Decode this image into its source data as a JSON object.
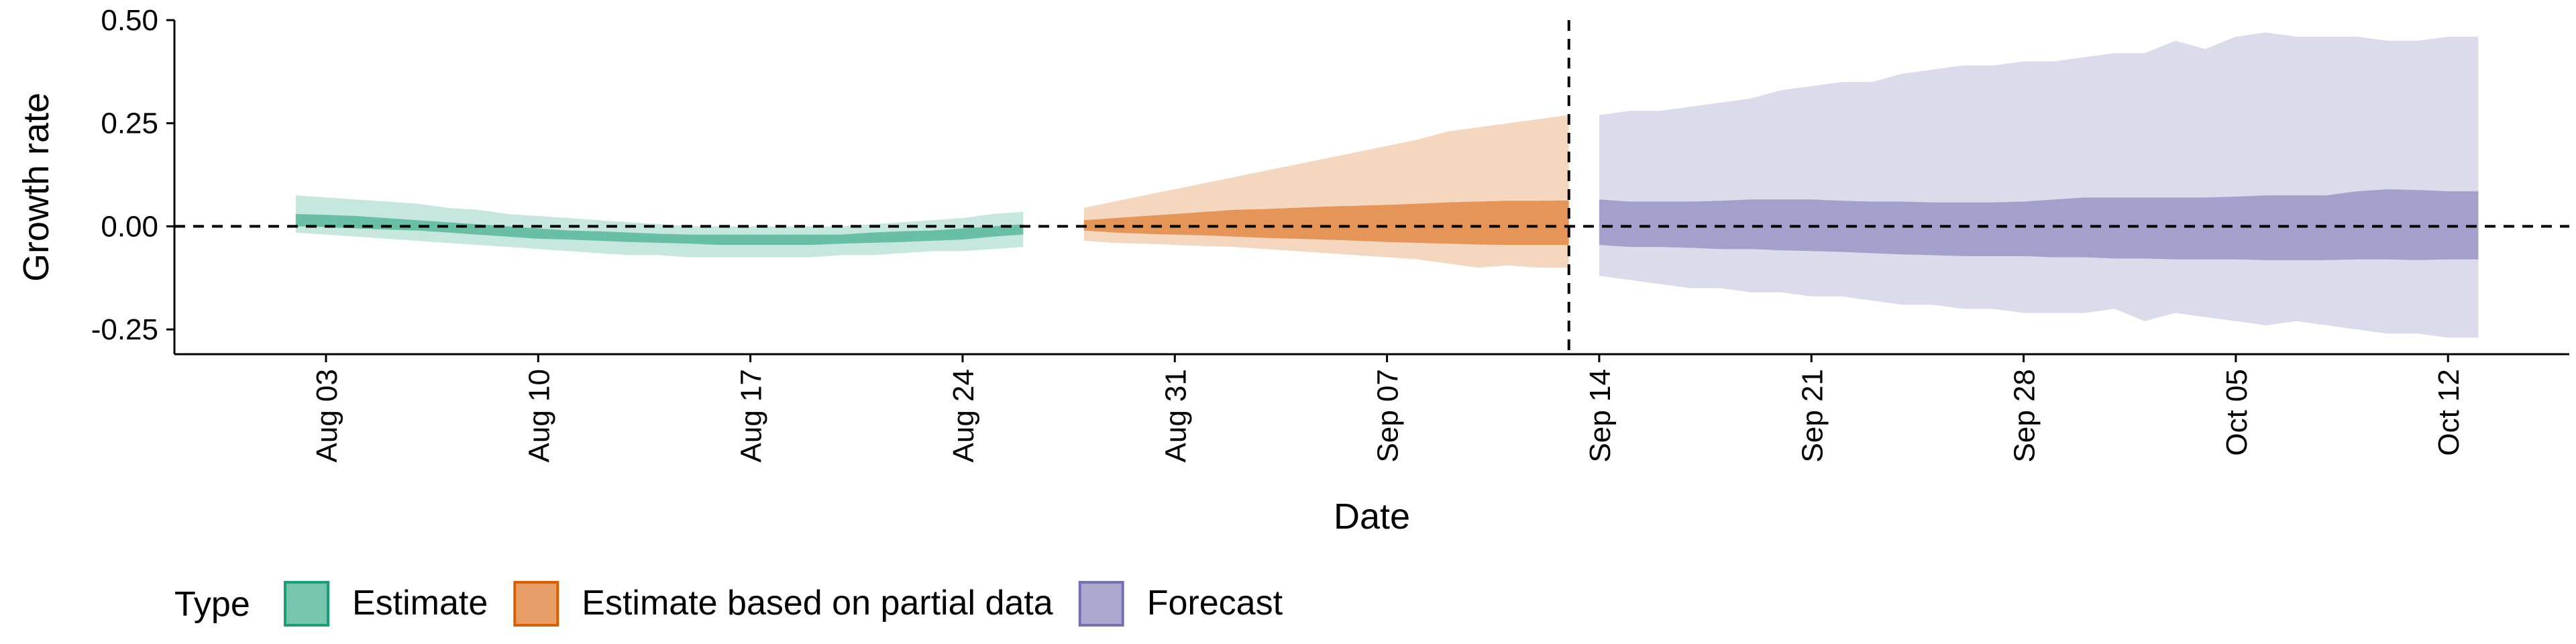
{
  "chart_data": {
    "type": "area",
    "xlabel": "Date",
    "ylabel": "Growth rate",
    "x_type": "date",
    "xlim": [
      "2020-07-29",
      "2020-10-16"
    ],
    "ylim": [
      -0.31,
      0.5
    ],
    "y_ticks": [
      0.5,
      0.25,
      0.0,
      -0.25
    ],
    "y_tick_labels": [
      "0.50",
      "0.25",
      "0.00",
      "-0.25"
    ],
    "x_ticks": [
      "2020-08-03",
      "2020-08-10",
      "2020-08-17",
      "2020-08-24",
      "2020-08-31",
      "2020-09-07",
      "2020-09-14",
      "2020-09-21",
      "2020-09-28",
      "2020-10-05",
      "2020-10-12"
    ],
    "x_tick_labels": [
      "Aug 03",
      "Aug 10",
      "Aug 17",
      "Aug 24",
      "Aug 31",
      "Sep 07",
      "Sep 14",
      "Sep 21",
      "Sep 28",
      "Oct 05",
      "Oct 12"
    ],
    "hline": 0.0,
    "vline": "2020-09-13",
    "legend": {
      "title": "Type",
      "position": "bottom"
    },
    "series": [
      {
        "name": "Estimate",
        "color": "#1b9e77",
        "x": [
          "2020-08-02",
          "2020-08-03",
          "2020-08-04",
          "2020-08-05",
          "2020-08-06",
          "2020-08-07",
          "2020-08-08",
          "2020-08-09",
          "2020-08-10",
          "2020-08-11",
          "2020-08-12",
          "2020-08-13",
          "2020-08-14",
          "2020-08-15",
          "2020-08-16",
          "2020-08-17",
          "2020-08-18",
          "2020-08-19",
          "2020-08-20",
          "2020-08-21",
          "2020-08-22",
          "2020-08-23",
          "2020-08-24",
          "2020-08-25",
          "2020-08-26"
        ],
        "upper90": [
          0.075,
          0.07,
          0.065,
          0.06,
          0.055,
          0.045,
          0.04,
          0.03,
          0.025,
          0.02,
          0.015,
          0.01,
          0.005,
          0.0,
          0.0,
          0.0,
          0.0,
          0.0,
          0.0,
          0.005,
          0.01,
          0.015,
          0.02,
          0.03,
          0.035
        ],
        "upper50": [
          0.03,
          0.028,
          0.025,
          0.02,
          0.015,
          0.01,
          0.005,
          0.0,
          -0.005,
          -0.01,
          -0.012,
          -0.015,
          -0.018,
          -0.02,
          -0.02,
          -0.02,
          -0.02,
          -0.02,
          -0.02,
          -0.015,
          -0.012,
          -0.01,
          -0.005,
          0.0,
          0.005
        ],
        "lower50": [
          0.0,
          -0.002,
          -0.005,
          -0.008,
          -0.01,
          -0.015,
          -0.02,
          -0.025,
          -0.03,
          -0.032,
          -0.035,
          -0.038,
          -0.04,
          -0.042,
          -0.045,
          -0.045,
          -0.045,
          -0.045,
          -0.042,
          -0.04,
          -0.038,
          -0.035,
          -0.032,
          -0.025,
          -0.02
        ],
        "lower90": [
          -0.015,
          -0.02,
          -0.025,
          -0.03,
          -0.035,
          -0.04,
          -0.045,
          -0.05,
          -0.055,
          -0.06,
          -0.065,
          -0.07,
          -0.07,
          -0.075,
          -0.075,
          -0.075,
          -0.075,
          -0.075,
          -0.07,
          -0.07,
          -0.065,
          -0.06,
          -0.06,
          -0.055,
          -0.05
        ]
      },
      {
        "name": "Estimate based on partial data",
        "color": "#d95f02",
        "x": [
          "2020-08-28",
          "2020-08-29",
          "2020-08-30",
          "2020-08-31",
          "2020-09-01",
          "2020-09-02",
          "2020-09-03",
          "2020-09-04",
          "2020-09-05",
          "2020-09-06",
          "2020-09-07",
          "2020-09-08",
          "2020-09-09",
          "2020-09-10",
          "2020-09-11",
          "2020-09-12",
          "2020-09-13"
        ],
        "upper90": [
          0.045,
          0.06,
          0.075,
          0.09,
          0.105,
          0.12,
          0.135,
          0.15,
          0.165,
          0.18,
          0.195,
          0.21,
          0.23,
          0.24,
          0.25,
          0.26,
          0.27
        ],
        "upper50": [
          0.015,
          0.02,
          0.025,
          0.03,
          0.035,
          0.04,
          0.042,
          0.045,
          0.048,
          0.05,
          0.052,
          0.055,
          0.058,
          0.06,
          0.062,
          0.062,
          0.063
        ],
        "lower50": [
          -0.01,
          -0.015,
          -0.018,
          -0.02,
          -0.022,
          -0.025,
          -0.028,
          -0.03,
          -0.032,
          -0.035,
          -0.038,
          -0.04,
          -0.042,
          -0.044,
          -0.045,
          -0.045,
          -0.045
        ],
        "lower90": [
          -0.035,
          -0.04,
          -0.042,
          -0.045,
          -0.048,
          -0.05,
          -0.055,
          -0.06,
          -0.065,
          -0.07,
          -0.075,
          -0.08,
          -0.09,
          -0.1,
          -0.095,
          -0.1,
          -0.1
        ]
      },
      {
        "name": "Forecast",
        "color": "#7570b3",
        "x": [
          "2020-09-14",
          "2020-09-15",
          "2020-09-16",
          "2020-09-17",
          "2020-09-18",
          "2020-09-19",
          "2020-09-20",
          "2020-09-21",
          "2020-09-22",
          "2020-09-23",
          "2020-09-24",
          "2020-09-25",
          "2020-09-26",
          "2020-09-27",
          "2020-09-28",
          "2020-09-29",
          "2020-09-30",
          "2020-10-01",
          "2020-10-02",
          "2020-10-03",
          "2020-10-04",
          "2020-10-05",
          "2020-10-06",
          "2020-10-07",
          "2020-10-08",
          "2020-10-09",
          "2020-10-10",
          "2020-10-11",
          "2020-10-12",
          "2020-10-13"
        ],
        "upper90": [
          0.27,
          0.28,
          0.28,
          0.29,
          0.3,
          0.31,
          0.33,
          0.34,
          0.35,
          0.35,
          0.37,
          0.38,
          0.39,
          0.39,
          0.4,
          0.4,
          0.41,
          0.42,
          0.42,
          0.45,
          0.43,
          0.46,
          0.47,
          0.46,
          0.46,
          0.46,
          0.45,
          0.45,
          0.46,
          0.46
        ],
        "upper50": [
          0.065,
          0.06,
          0.06,
          0.06,
          0.062,
          0.065,
          0.065,
          0.065,
          0.062,
          0.06,
          0.06,
          0.058,
          0.058,
          0.058,
          0.06,
          0.065,
          0.07,
          0.07,
          0.07,
          0.07,
          0.07,
          0.072,
          0.075,
          0.075,
          0.075,
          0.085,
          0.09,
          0.088,
          0.085,
          0.085
        ],
        "lower50": [
          -0.045,
          -0.05,
          -0.05,
          -0.052,
          -0.055,
          -0.055,
          -0.058,
          -0.06,
          -0.062,
          -0.065,
          -0.068,
          -0.07,
          -0.072,
          -0.072,
          -0.072,
          -0.075,
          -0.075,
          -0.078,
          -0.078,
          -0.08,
          -0.08,
          -0.08,
          -0.082,
          -0.082,
          -0.082,
          -0.08,
          -0.08,
          -0.082,
          -0.08,
          -0.08
        ],
        "lower90": [
          -0.12,
          -0.13,
          -0.14,
          -0.15,
          -0.15,
          -0.16,
          -0.16,
          -0.17,
          -0.17,
          -0.18,
          -0.19,
          -0.19,
          -0.2,
          -0.2,
          -0.21,
          -0.21,
          -0.21,
          -0.2,
          -0.23,
          -0.21,
          -0.22,
          -0.23,
          -0.24,
          -0.23,
          -0.24,
          -0.25,
          -0.26,
          -0.26,
          -0.27,
          -0.27
        ]
      }
    ]
  }
}
